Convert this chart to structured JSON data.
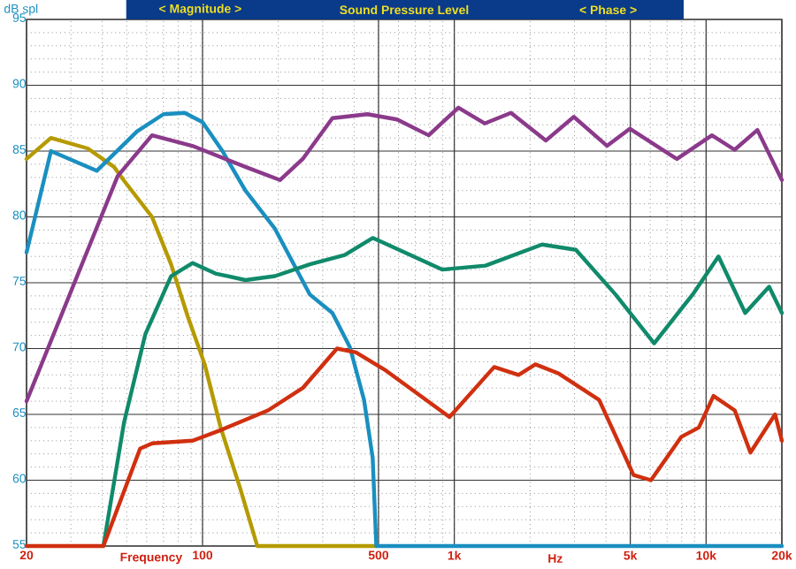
{
  "chart_data": {
    "type": "line",
    "title": "Sound Pressure Level",
    "xlabel": "Frequency",
    "ylabel": "dB spl",
    "annotations": [
      "< Magnitude >",
      "< Phase >",
      "Hz"
    ],
    "log": "x",
    "grid": true,
    "xlim": [
      20,
      20000
    ],
    "ylim": [
      55,
      95
    ],
    "xticks": [
      20,
      100,
      500,
      {
        "value": 1000,
        "label": "1k"
      },
      {
        "value": 5000,
        "label": "5k"
      },
      {
        "value": 10000,
        "label": "10k"
      },
      {
        "value": 20000,
        "label": "20k"
      }
    ],
    "yticks": [
      55,
      60,
      65,
      70,
      75,
      80,
      85,
      90,
      95
    ],
    "series": [
      {
        "color": "#b59a00",
        "x": [
          20,
          25,
          35,
          44.5,
          49,
          63,
          75,
          87.5,
          102,
          118,
          141,
          165,
          490
        ],
        "values": [
          84.4,
          86,
          85.2,
          83.8,
          82.7,
          80,
          76.4,
          72.4,
          68.8,
          64,
          59.4,
          55,
          55
        ]
      },
      {
        "color": "#1a8fc0",
        "x": [
          20,
          25,
          38,
          55,
          70,
          85,
          100,
          120,
          148,
          194,
          267,
          328,
          385,
          438,
          474,
          490,
          20000
        ],
        "values": [
          77.3,
          85,
          83.5,
          86.5,
          87.8,
          87.9,
          87.2,
          85,
          82,
          79.1,
          74.1,
          72.7,
          70.1,
          66.1,
          61.7,
          55,
          55
        ]
      },
      {
        "color": "#8b3a8b",
        "x": [
          20,
          46,
          63,
          91,
          148,
          203,
          250,
          328,
          452,
          593,
          791,
          1038,
          1320,
          1679,
          2309,
          2983,
          4044,
          4977,
          7663,
          10550,
          12980,
          15990,
          20000
        ],
        "values": [
          66,
          83.1,
          86.2,
          85.4,
          83.8,
          82.8,
          84.4,
          87.5,
          87.8,
          87.4,
          86.2,
          88.3,
          87.1,
          87.9,
          85.8,
          87.6,
          85.4,
          86.7,
          84.4,
          86.2,
          85.1,
          86.6,
          82.8
        ]
      },
      {
        "color": "#108a6a",
        "x": [
          40.4,
          48.8,
          59.3,
          75,
          91.4,
          112.5,
          148,
          194,
          267,
          367,
          474,
          528,
          894,
          1331,
          2232,
          3040,
          4370,
          6220,
          8840,
          11200,
          14300,
          17800,
          20000
        ],
        "values": [
          55,
          64.4,
          71.1,
          75.5,
          76.5,
          75.7,
          75.2,
          75.5,
          76.4,
          77.1,
          78.4,
          78,
          76,
          76.3,
          77.9,
          77.5,
          74.1,
          70.4,
          74.1,
          77,
          72.7,
          74.7,
          72.7
        ]
      },
      {
        "color": "#d03010",
        "x": [
          20,
          40.4,
          56.5,
          63.2,
          91.4,
          118,
          182,
          250,
          342,
          407,
          528,
          957,
          1440,
          1800,
          2100,
          2600,
          3760,
          5150,
          6040,
          7980,
          9360,
          10700,
          13000,
          15000,
          18800,
          20000
        ],
        "values": [
          55,
          55,
          62.4,
          62.8,
          63,
          63.8,
          65.3,
          67,
          70,
          69.7,
          68.4,
          64.8,
          68.6,
          68,
          68.8,
          68.1,
          66.1,
          60.4,
          60,
          63.3,
          64,
          66.4,
          65.3,
          62.1,
          65,
          63
        ]
      }
    ]
  }
}
